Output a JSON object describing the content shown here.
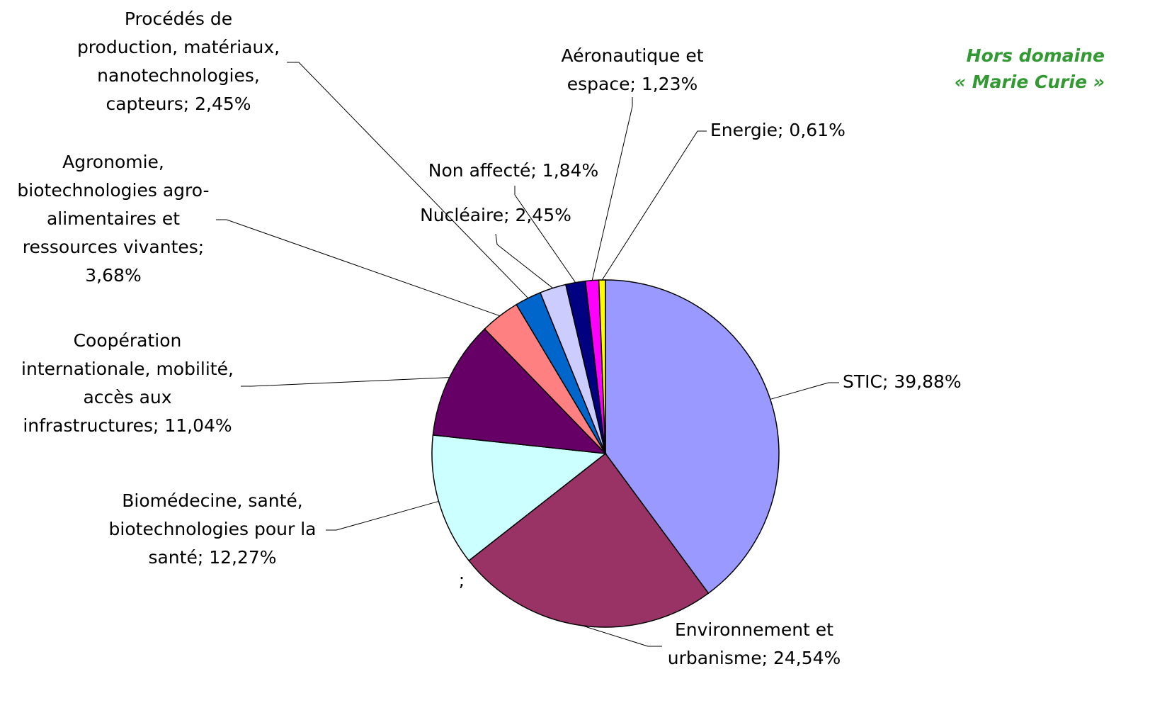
{
  "chart_data": {
    "type": "pie",
    "categories": [
      "STIC",
      "Environnement et urbanisme",
      "Biomédecine, santé, biotechnologies pour la santé",
      "Coopération internationale, mobilité, accès aux infrastructures",
      "Agronomie, biotechnologies agro-alimentaires et ressources vivantes",
      "Procédés de production, matériaux, nanotechnologies, capteurs",
      "Nucléaire",
      "Non affecté",
      "Aéronautique et espace",
      "Energie"
    ],
    "values": [
      39.88,
      24.54,
      12.27,
      11.04,
      3.68,
      2.45,
      2.45,
      1.84,
      1.23,
      0.61
    ],
    "labels": [
      [
        "STIC; 39,88%"
      ],
      [
        "Environnement et",
        "urbanisme; 24,54%"
      ],
      [
        "Biomédecine, santé,",
        "biotechnologies pour la",
        "santé; 12,27%"
      ],
      [
        "Coopération",
        "internationale, mobilité,",
        "accès aux",
        "infrastructures; 11,04%"
      ],
      [
        "Agronomie,",
        "biotechnologies agro-",
        "alimentaires et",
        "ressources vivantes;",
        "3,68%"
      ],
      [
        "Procédés de",
        "production, matériaux,",
        "nanotechnologies,",
        "capteurs; 2,45%"
      ],
      [
        "Nucléaire; 2,45%"
      ],
      [
        "Non affecté; 1,84%"
      ],
      [
        "Aéronautique et",
        "espace; 1,23%"
      ],
      [
        "Energie; 0,61%"
      ]
    ],
    "colors": [
      "#9999ff",
      "#993366",
      "#ccffff",
      "#660066",
      "#ff8080",
      "#0066cc",
      "#ccccff",
      "#000080",
      "#ff00ff",
      "#ffff00"
    ],
    "annotations": [
      ";"
    ],
    "note": [
      "Hors domaine",
      "« Marie Curie »"
    ],
    "note_color": "#339933"
  }
}
